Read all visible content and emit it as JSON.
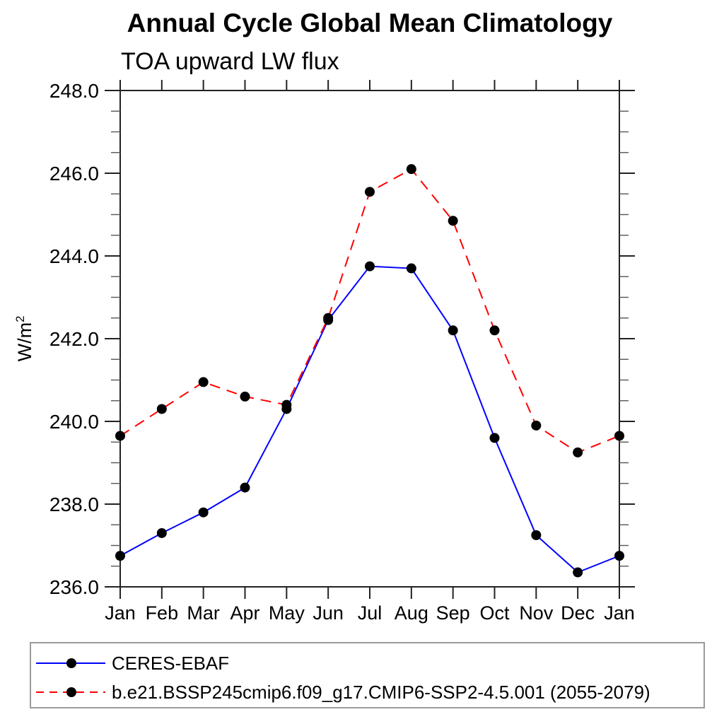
{
  "chart_data": {
    "type": "line",
    "title": "Annual Cycle Global Mean Climatology",
    "subtitle": "TOA upward LW flux",
    "ylabel": "W/m",
    "ylabel_superscript": "2",
    "x_categories": [
      "Jan",
      "Feb",
      "Mar",
      "Apr",
      "May",
      "Jun",
      "Jul",
      "Aug",
      "Sep",
      "Oct",
      "Nov",
      "Dec",
      "Jan"
    ],
    "y_tick_labels": [
      "236.0",
      "238.0",
      "240.0",
      "242.0",
      "244.0",
      "246.0",
      "248.0"
    ],
    "y_tick_values": [
      236.0,
      238.0,
      240.0,
      242.0,
      244.0,
      246.0,
      248.0
    ],
    "ylim": [
      236.0,
      248.0
    ],
    "y_minor_step": 0.5,
    "grid": false,
    "legend_position": "bottom-left-box",
    "marker": "filled-circle",
    "series": [
      {
        "name": "CERES-EBAF",
        "color": "#0000ff",
        "line_style": "solid",
        "marker_color": "#000000",
        "values": [
          236.75,
          237.3,
          237.8,
          238.4,
          240.3,
          242.45,
          243.75,
          243.7,
          242.2,
          239.6,
          237.25,
          236.35,
          236.75
        ]
      },
      {
        "name": "b.e21.BSSP245cmip6.f09_g17.CMIP6-SSP2-4.5.001 (2055-2079)",
        "color": "#ff0000",
        "line_style": "dashed",
        "marker_color": "#000000",
        "values": [
          239.65,
          240.3,
          240.95,
          240.6,
          240.4,
          242.5,
          245.55,
          246.1,
          244.85,
          242.2,
          239.9,
          239.25,
          239.65
        ]
      }
    ]
  },
  "colors": {
    "axis": "#222222",
    "minor_tick": "#555555",
    "text": "#000000",
    "legend_border": "#9a9a9a",
    "background": "#ffffff"
  }
}
